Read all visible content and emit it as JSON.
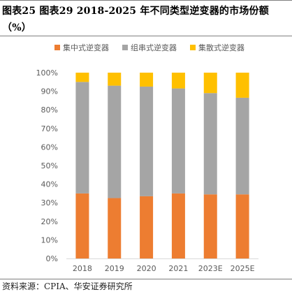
{
  "figure": {
    "title": "图表25 图表29 2018-2025 年不同类型逆变器的市场份额（%）",
    "source": "资料来源：CPIA、华安证券研究所"
  },
  "colors": {
    "series_1": "#ed7d31",
    "series_2": "#a5a5a5",
    "series_3": "#ffc000",
    "axis_text": "#595959",
    "frame": "#7f7f7f"
  },
  "chart_data": {
    "type": "bar",
    "stacked": true,
    "categories": [
      "2018",
      "2019",
      "2020",
      "2021",
      "2023E",
      "2025E"
    ],
    "series": [
      {
        "name": "集中式逆变器",
        "values": [
          35,
          32.5,
          33.5,
          35,
          34.5,
          34.5
        ]
      },
      {
        "name": "组串式逆变器",
        "values": [
          60,
          60.5,
          59,
          56.5,
          54.5,
          52
        ]
      },
      {
        "name": "集散式逆变器",
        "values": [
          5,
          7,
          7.5,
          8.5,
          11,
          13.5
        ]
      }
    ],
    "ylim": [
      0,
      100
    ],
    "yticks": [
      "0%",
      "10%",
      "20%",
      "30%",
      "40%",
      "50%",
      "60%",
      "70%",
      "80%",
      "90%",
      "100%"
    ],
    "xlabel": "",
    "ylabel": "",
    "grid": false,
    "legend": "top"
  }
}
